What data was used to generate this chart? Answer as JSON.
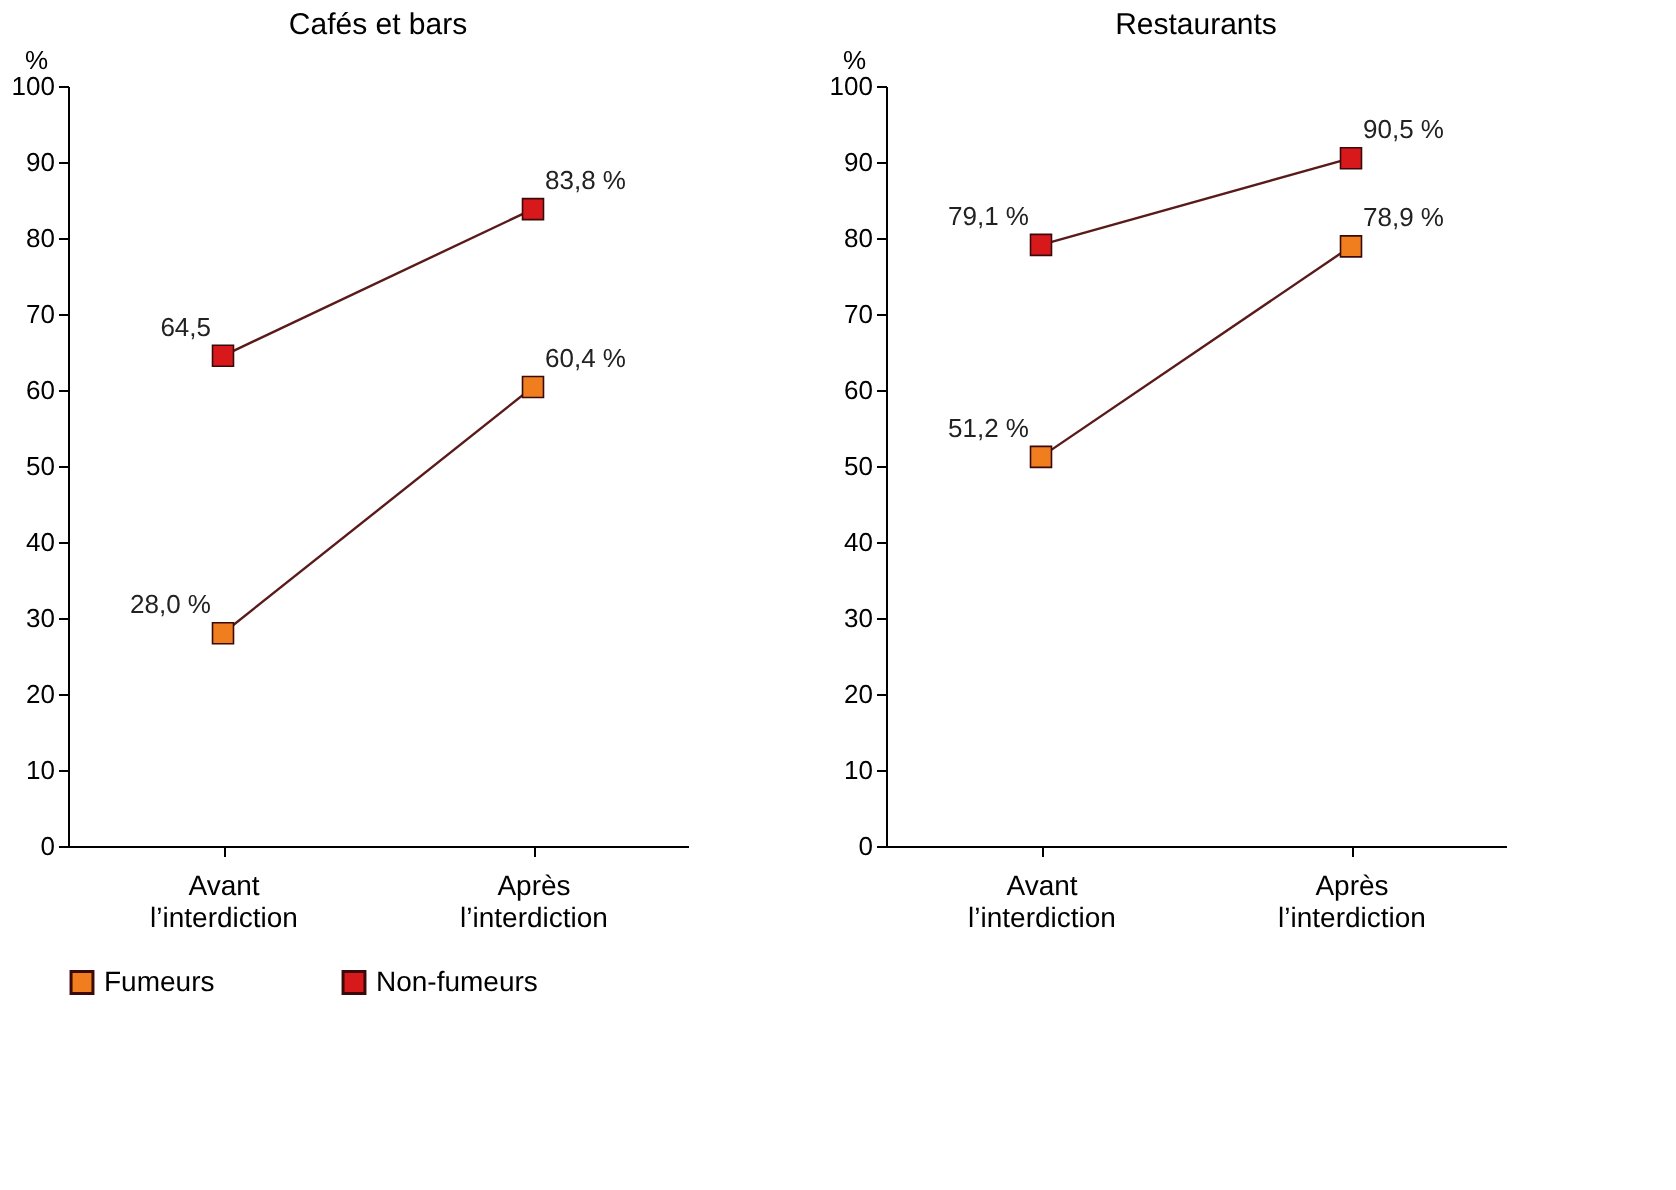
{
  "chart_data": [
    {
      "type": "line",
      "title": "Cafés et bars",
      "ylabel": "%",
      "categories": [
        "Avant l’interdiction",
        "Après l’interdiction"
      ],
      "ylim": [
        0,
        100
      ],
      "yticks": [
        0,
        10,
        20,
        30,
        40,
        50,
        60,
        70,
        80,
        90,
        100
      ],
      "grid": false,
      "marker": "square",
      "legend": "bottom",
      "series": [
        {
          "name": "Fumeurs",
          "color": "#f07d1e",
          "values": [
            28.0,
            60.4
          ],
          "value_labels": [
            "28,0 %",
            "60,4 %"
          ]
        },
        {
          "name": "Non-fumeurs",
          "color": "#d7191c",
          "values": [
            64.5,
            83.8
          ],
          "value_labels": [
            "64,5",
            "83,8 %"
          ]
        }
      ]
    },
    {
      "type": "line",
      "title": "Restaurants",
      "ylabel": "%",
      "categories": [
        "Avant l’interdiction",
        "Après l’interdiction"
      ],
      "ylim": [
        0,
        100
      ],
      "yticks": [
        0,
        10,
        20,
        30,
        40,
        50,
        60,
        70,
        80,
        90,
        100
      ],
      "grid": false,
      "marker": "square",
      "legend": "bottom",
      "series": [
        {
          "name": "Fumeurs",
          "color": "#f07d1e",
          "values": [
            51.2,
            78.9
          ],
          "value_labels": [
            "51,2 %",
            "78,9 %"
          ]
        },
        {
          "name": "Non-fumeurs",
          "color": "#d7191c",
          "values": [
            79.1,
            90.5
          ],
          "value_labels": [
            "79,1 %",
            "90,5 %"
          ]
        }
      ]
    }
  ]
}
